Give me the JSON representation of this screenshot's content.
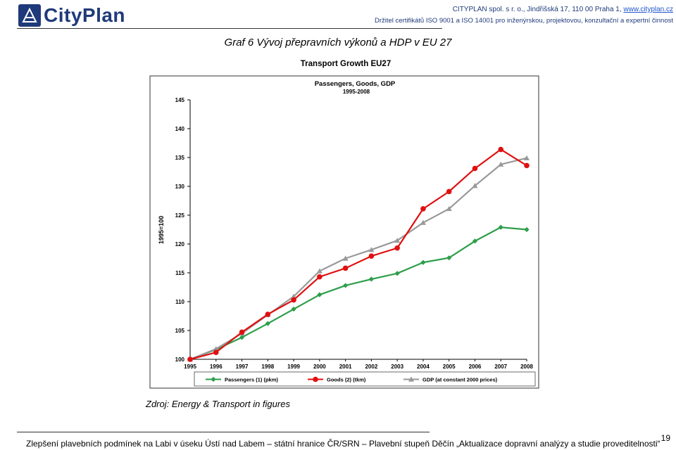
{
  "header": {
    "logo_text": "CityPlan",
    "company_line_prefix": "CITYPLAN spol. s r. o., Jindřišská 17, 110 00 Praha 1, ",
    "company_link": "www.cityplan.cz",
    "cert_line": "Držitel certifikátů ISO 9001 a ISO 14001 pro inženýrskou, projektovou, konzultační a expertní činnost"
  },
  "figure_title": "Graf 6 Vývoj přepravních výkonů a HDP v EU 27",
  "source_note": "Zdroj: Energy & Transport in figures",
  "footer": {
    "text": "Zlepšení plavebních podmínek na Labi v úseku Ústí nad Labem – státní hranice ČR/SRN – Plavební stupeň Děčín „Aktualizace dopravní analýzy a studie proveditelnosti“",
    "page_number": "19"
  },
  "colors": {
    "passengers": "#2e9e4a",
    "goods": "#e01010",
    "gdp": "#999999",
    "brand": "#1f3a7a"
  },
  "chart_data": {
    "type": "line",
    "title": "Transport Growth EU27",
    "subtitle": "Passengers, Goods, GDP",
    "subtitle2": "1995-2008",
    "ylabel": "1995=100",
    "xlabel": "",
    "ylim": [
      100,
      145
    ],
    "yticks": [
      100,
      105,
      110,
      115,
      120,
      125,
      130,
      135,
      140,
      145
    ],
    "categories": [
      "1995",
      "1996",
      "1997",
      "1998",
      "1999",
      "2000",
      "2001",
      "2002",
      "2003",
      "2004",
      "2005",
      "2006",
      "2007",
      "2008"
    ],
    "grid": false,
    "legend_position": "bottom",
    "series": [
      {
        "name": "Passengers (1) (pkm)",
        "color": "#2e9e4a",
        "marker": "diamond",
        "values": [
          100,
          101.7,
          103.8,
          106.2,
          108.7,
          111.2,
          112.8,
          113.9,
          114.9,
          116.8,
          117.6,
          120.5,
          122.9,
          122.5
        ]
      },
      {
        "name": "Goods (2) (tkm)",
        "color": "#e01010",
        "marker": "circle",
        "values": [
          100,
          101.2,
          104.7,
          107.8,
          110.3,
          114.3,
          115.8,
          117.9,
          119.3,
          126.1,
          129.1,
          133.1,
          136.4,
          133.6
        ]
      },
      {
        "name": "GDP (at constant 2000 prices)",
        "color": "#999999",
        "marker": "triangle",
        "values": [
          100,
          101.8,
          104.5,
          107.7,
          110.9,
          115.3,
          117.5,
          119.0,
          120.6,
          123.7,
          126.1,
          130.1,
          133.8,
          134.9
        ]
      }
    ]
  }
}
